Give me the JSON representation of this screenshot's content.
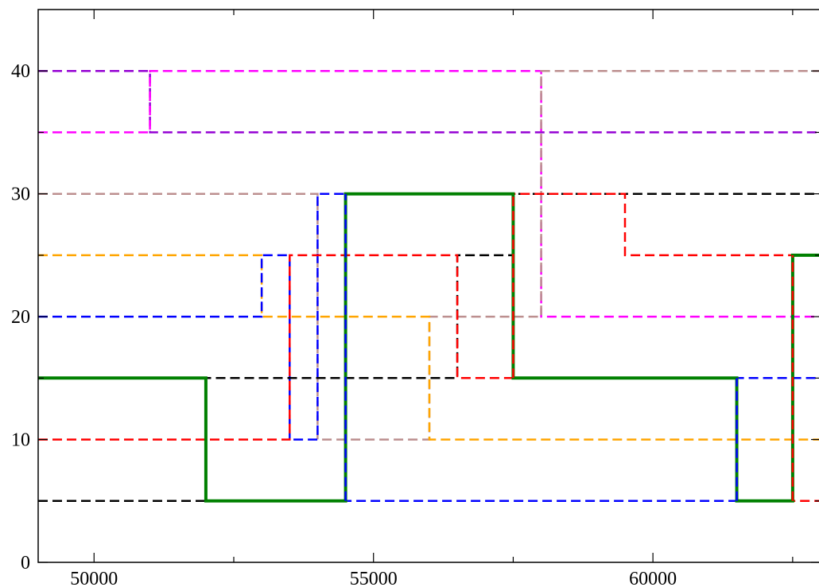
{
  "chart_data": {
    "type": "line",
    "title": "",
    "xlabel": "",
    "ylabel": "",
    "xlim": [
      49000,
      63000
    ],
    "ylim": [
      0,
      45
    ],
    "grid": false,
    "x_ticks": [
      {
        "value": 50000,
        "label": "50000"
      },
      {
        "value": 55000,
        "label": "55000"
      },
      {
        "value": 60000,
        "label": "60000"
      }
    ],
    "x_minor_ticks": [
      52500,
      57500,
      62500
    ],
    "y_ticks": [
      {
        "value": 0,
        "label": "0"
      },
      {
        "value": 10,
        "label": "10"
      },
      {
        "value": 20,
        "label": "20"
      },
      {
        "value": 30,
        "label": "30"
      },
      {
        "value": 40,
        "label": "40"
      }
    ],
    "y_minor_ticks": [
      5,
      15,
      25,
      35
    ],
    "series": [
      {
        "color": "#9400d3",
        "dash": true,
        "width": 2.5,
        "points": [
          [
            49000,
            40
          ],
          [
            51000,
            40
          ],
          [
            51000,
            35
          ],
          [
            63000,
            35
          ]
        ]
      },
      {
        "color": "#ff00ff",
        "dash": true,
        "width": 2.5,
        "points": [
          [
            49000,
            35
          ],
          [
            51000,
            35
          ],
          [
            51000,
            40
          ],
          [
            58000,
            40
          ],
          [
            58000,
            20
          ],
          [
            63000,
            20
          ]
        ]
      },
      {
        "color": "#bc8f8f",
        "dash": true,
        "width": 2.5,
        "points": [
          [
            49000,
            30
          ],
          [
            54000,
            30
          ],
          [
            54000,
            10
          ],
          [
            56000,
            10
          ],
          [
            56000,
            20
          ],
          [
            58000,
            20
          ],
          [
            58000,
            40
          ],
          [
            63000,
            40
          ]
        ]
      },
      {
        "color": "#ffa500",
        "dash": true,
        "width": 2.5,
        "points": [
          [
            49000,
            25
          ],
          [
            53000,
            25
          ],
          [
            53000,
            20
          ],
          [
            56000,
            20
          ],
          [
            56000,
            10
          ],
          [
            63000,
            10
          ]
        ]
      },
      {
        "color": "#0000ff",
        "dash": true,
        "width": 2.5,
        "points": [
          [
            49000,
            20
          ],
          [
            53000,
            20
          ],
          [
            53000,
            25
          ],
          [
            53500,
            25
          ],
          [
            53500,
            10
          ],
          [
            54000,
            10
          ],
          [
            54000,
            30
          ],
          [
            54500,
            30
          ],
          [
            54500,
            5
          ],
          [
            61500,
            5
          ],
          [
            61500,
            15
          ],
          [
            63000,
            15
          ]
        ]
      },
      {
        "color": "#000000",
        "dash": true,
        "width": 2.5,
        "points": [
          [
            49000,
            5
          ],
          [
            52000,
            5
          ],
          [
            52000,
            15
          ],
          [
            56500,
            15
          ],
          [
            56500,
            25
          ],
          [
            57500,
            25
          ],
          [
            57500,
            30
          ],
          [
            63000,
            30
          ]
        ]
      },
      {
        "color": "#ff0000",
        "dash": true,
        "width": 2.5,
        "points": [
          [
            49000,
            10
          ],
          [
            53500,
            10
          ],
          [
            53500,
            25
          ],
          [
            56500,
            25
          ],
          [
            56500,
            15
          ],
          [
            57500,
            15
          ],
          [
            57500,
            30
          ],
          [
            59500,
            30
          ],
          [
            59500,
            25
          ],
          [
            62500,
            25
          ],
          [
            62500,
            5
          ],
          [
            63000,
            5
          ]
        ]
      },
      {
        "color": "#008000",
        "dash": false,
        "width": 4,
        "points": [
          [
            49000,
            15
          ],
          [
            52000,
            15
          ],
          [
            52000,
            5
          ],
          [
            54500,
            5
          ],
          [
            54500,
            30
          ],
          [
            57500,
            30
          ],
          [
            57500,
            15
          ],
          [
            61500,
            15
          ],
          [
            61500,
            5
          ],
          [
            62500,
            5
          ],
          [
            62500,
            25
          ],
          [
            63000,
            25
          ]
        ]
      },
      {
        "color": "#0000ff",
        "dash": true,
        "width": 2.5,
        "points": [
          [
            54500,
            5
          ],
          [
            54500,
            30
          ]
        ]
      },
      {
        "color": "#0000ff",
        "dash": true,
        "width": 2.5,
        "points": [
          [
            61500,
            5
          ],
          [
            61500,
            15
          ]
        ]
      },
      {
        "color": "#ff0000",
        "dash": true,
        "width": 2.5,
        "points": [
          [
            57500,
            15
          ],
          [
            57500,
            30
          ]
        ]
      },
      {
        "color": "#ff0000",
        "dash": true,
        "width": 2.5,
        "points": [
          [
            62500,
            5
          ],
          [
            62500,
            25
          ]
        ]
      }
    ]
  }
}
